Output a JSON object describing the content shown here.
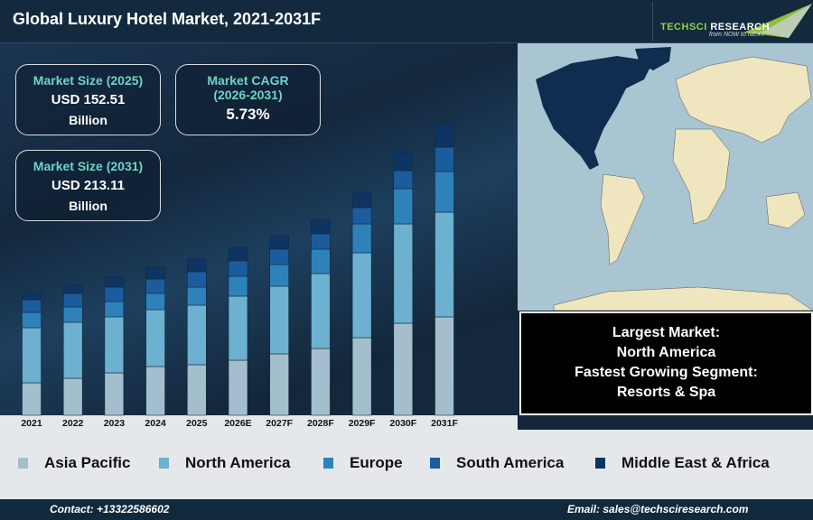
{
  "header": {
    "title": "Global Luxury Hotel Market, 2021-2031F",
    "logo_text": "TechSci Research",
    "logo_tagline": "from NOW to NEXT"
  },
  "cards": {
    "size_2025": {
      "label": "Market Size (2025)",
      "value": "USD 152.51",
      "unit": "Billion"
    },
    "cagr": {
      "label": "Market CAGR (2026-2031)",
      "value": "5.73%"
    },
    "size_2031": {
      "label": "Market Size (2031)",
      "value": "USD 213.11",
      "unit": "Billion"
    }
  },
  "info": {
    "largest_label": "Largest Market:",
    "largest_value": "North America",
    "fastest_label": "Fastest Growing Segment:",
    "fastest_value": "Resorts & Spa"
  },
  "map": {
    "highlight": "North America",
    "colors": {
      "sea": "#a9c5d2",
      "land": "#efe5bf",
      "highlight": "#0f2d4e"
    }
  },
  "chart_data": {
    "type": "bar",
    "stacked": true,
    "title": "",
    "xlabel": "",
    "ylabel": "",
    "grid": false,
    "legend": "bottom",
    "categories": [
      "2021",
      "2022",
      "2023",
      "2024",
      "2025",
      "2026E",
      "2027F",
      "2028F",
      "2029F",
      "2030F",
      "2031F"
    ],
    "series": [
      {
        "name": "Asia Pacific",
        "color": "#a3bfcd",
        "values": [
          36,
          41,
          47,
          54,
          56,
          61,
          68,
          74,
          86,
          102,
          109
        ]
      },
      {
        "name": "North America",
        "color": "#6cb1d0",
        "values": [
          61,
          62,
          62,
          63,
          66,
          71,
          75,
          83,
          94,
          110,
          116
        ]
      },
      {
        "name": "Europe",
        "color": "#2e82ba",
        "values": [
          17,
          17,
          17,
          18,
          20,
          22,
          24,
          27,
          32,
          39,
          45
        ]
      },
      {
        "name": "South America",
        "color": "#1b5c9e",
        "values": [
          14,
          15,
          16,
          16,
          17,
          17,
          17,
          17,
          18,
          20,
          27
        ]
      },
      {
        "name": "Middle East & Africa",
        "color": "#0e3462",
        "values": [
          7,
          9,
          11,
          13,
          14,
          15,
          15,
          16,
          17,
          21,
          26
        ]
      }
    ]
  },
  "footer": {
    "contact": "Contact: +13322586602",
    "email": "Email: sales@techsciresearch.com"
  }
}
